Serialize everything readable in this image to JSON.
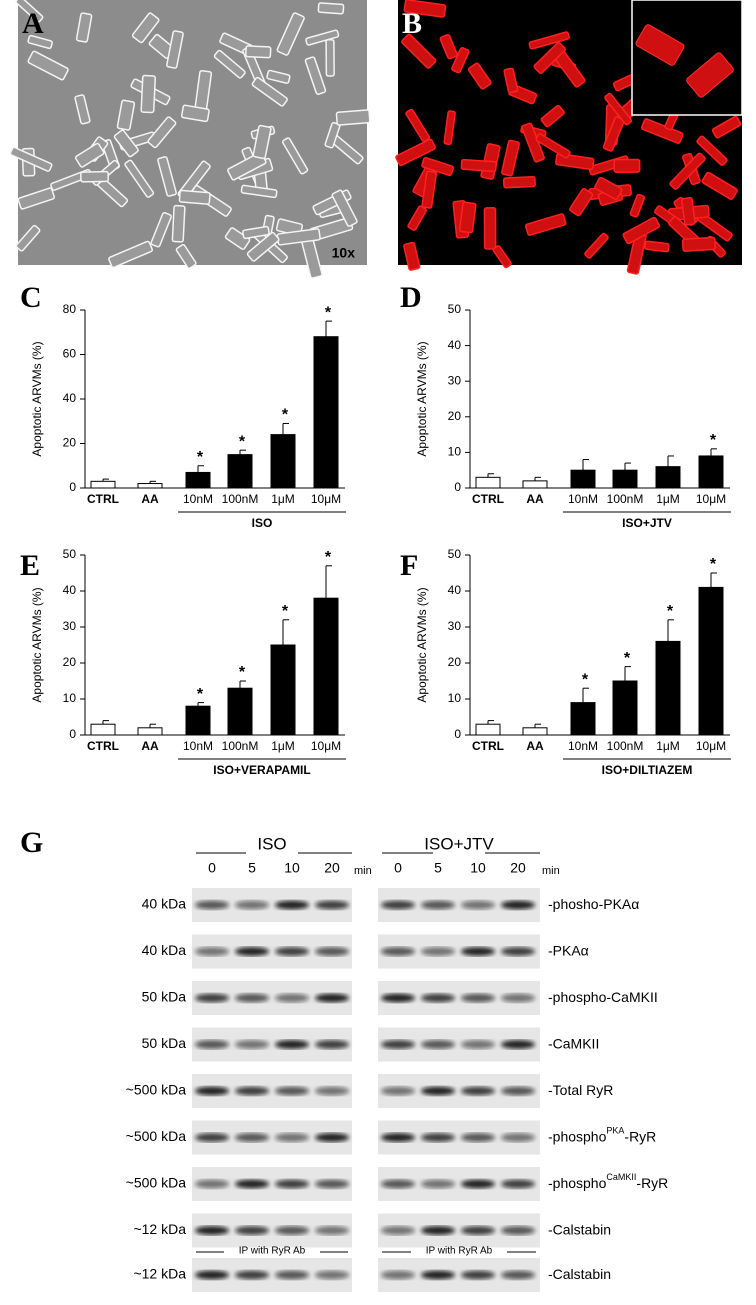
{
  "micrographs": [
    {
      "label": "A",
      "note": "10x"
    },
    {
      "label": "B"
    }
  ],
  "chart_data": [
    {
      "type": "bar",
      "panel_label": "C",
      "y_label": "Apoptotic ARVMs (%)",
      "categories": [
        "CTRL",
        "AA",
        "10nM",
        "100nM",
        "1μM",
        "10μM"
      ],
      "values": [
        3,
        2,
        7,
        15,
        24,
        68
      ],
      "errors": [
        1,
        1,
        3,
        2,
        5,
        7
      ],
      "colors": [
        "#ffffff",
        "#ffffff",
        "#000000",
        "#000000",
        "#000000",
        "#000000"
      ],
      "ylim": [
        0,
        80
      ],
      "yticks": [
        0,
        20,
        40,
        60,
        80
      ],
      "group_label": "ISO",
      "group_categories": [
        "10nM",
        "100nM",
        "1μM",
        "10μM"
      ],
      "annotations": [
        {
          "x": "10nM",
          "text": "*"
        },
        {
          "x": "100nM",
          "text": "*"
        },
        {
          "x": "1μM",
          "text": "*"
        },
        {
          "x": "10μM",
          "text": "*"
        }
      ]
    },
    {
      "type": "bar",
      "panel_label": "D",
      "y_label": "Apoptotic ARVMs (%)",
      "categories": [
        "CTRL",
        "AA",
        "10nM",
        "100nM",
        "1μM",
        "10μM"
      ],
      "values": [
        3,
        2,
        5,
        5,
        6,
        9
      ],
      "errors": [
        1,
        1,
        3,
        2,
        3,
        2
      ],
      "colors": [
        "#ffffff",
        "#ffffff",
        "#000000",
        "#000000",
        "#000000",
        "#000000"
      ],
      "ylim": [
        0,
        50
      ],
      "yticks": [
        0,
        10,
        20,
        30,
        40,
        50
      ],
      "group_label": "ISO+JTV",
      "group_categories": [
        "10nM",
        "100nM",
        "1μM",
        "10μM"
      ],
      "annotations": [
        {
          "x": "10μM",
          "text": "*"
        }
      ]
    },
    {
      "type": "bar",
      "panel_label": "E",
      "y_label": "Apoptotic ARVMs (%)",
      "categories": [
        "CTRL",
        "AA",
        "10nM",
        "100nM",
        "1μM",
        "10μM"
      ],
      "values": [
        3,
        2,
        8,
        13,
        25,
        38
      ],
      "errors": [
        1,
        1,
        1,
        2,
        7,
        9
      ],
      "colors": [
        "#ffffff",
        "#ffffff",
        "#000000",
        "#000000",
        "#000000",
        "#000000"
      ],
      "ylim": [
        0,
        50
      ],
      "yticks": [
        0,
        10,
        20,
        30,
        40,
        50
      ],
      "group_label": "ISO+VERAPAMIL",
      "group_categories": [
        "10nM",
        "100nM",
        "1μM",
        "10μM"
      ],
      "annotations": [
        {
          "x": "10nM",
          "text": "*"
        },
        {
          "x": "100nM",
          "text": "*"
        },
        {
          "x": "1μM",
          "text": "*"
        },
        {
          "x": "10μM",
          "text": "*"
        }
      ]
    },
    {
      "type": "bar",
      "panel_label": "F",
      "y_label": "Apoptotic ARVMs (%)",
      "categories": [
        "CTRL",
        "AA",
        "10nM",
        "100nM",
        "1μM",
        "10μM"
      ],
      "values": [
        3,
        2,
        9,
        15,
        26,
        41
      ],
      "errors": [
        1,
        1,
        4,
        4,
        6,
        4
      ],
      "colors": [
        "#ffffff",
        "#ffffff",
        "#000000",
        "#000000",
        "#000000",
        "#000000"
      ],
      "ylim": [
        0,
        50
      ],
      "yticks": [
        0,
        10,
        20,
        30,
        40,
        50
      ],
      "group_label": "ISO+DILTIAZEM",
      "group_categories": [
        "10nM",
        "100nM",
        "1μM",
        "10μM"
      ],
      "annotations": [
        {
          "x": "10nM",
          "text": "*"
        },
        {
          "x": "100nM",
          "text": "*"
        },
        {
          "x": "1μM",
          "text": "*"
        },
        {
          "x": "10μM",
          "text": "*"
        }
      ]
    }
  ],
  "blots": {
    "panel_label": "G",
    "left_header": "ISO",
    "right_header": "ISO+JTV",
    "timepoints": [
      "0",
      "5",
      "10",
      "20"
    ],
    "time_unit": "min",
    "rows": [
      {
        "size": "40 kDa",
        "label": {
          "prefix": "-phosho-PKAα"
        }
      },
      {
        "size": "40 kDa",
        "label": {
          "prefix": "-PKAα"
        }
      },
      {
        "size": "50 kDa",
        "label": {
          "prefix": "-phospho-CaMKII"
        }
      },
      {
        "size": "50 kDa",
        "label": {
          "prefix": "-CaMKII"
        }
      },
      {
        "size": "~500 kDa",
        "label": {
          "prefix": "-Total RyR"
        }
      },
      {
        "size": "~500 kDa",
        "label": {
          "prefix": "-phospho",
          "sup": "PKA",
          "suffix": "-RyR"
        }
      },
      {
        "size": "~500 kDa",
        "label": {
          "prefix": "-phospho",
          "sup": "CaMKII",
          "suffix": "-RyR"
        }
      },
      {
        "size": "~12 kDa",
        "label": {
          "prefix": "-Calstabin"
        }
      }
    ],
    "ip_label": "IP with RyR Ab",
    "ip_row": {
      "size": "~12 kDa",
      "label": {
        "prefix": "-Calstabin"
      }
    }
  }
}
